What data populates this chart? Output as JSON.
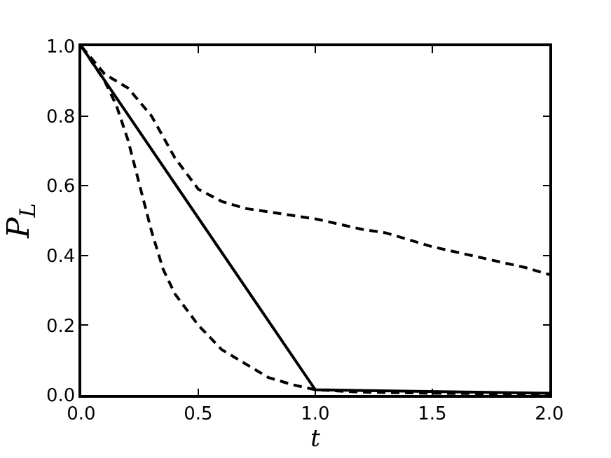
{
  "chart_data": {
    "type": "line",
    "xlabel": "t",
    "ylabel": "P$_{L}$",
    "xlim": [
      0.0,
      2.0
    ],
    "ylim": [
      0.0,
      1.0
    ],
    "xticks": [
      {
        "value": 0,
        "label": "0.0"
      },
      {
        "value": 0.5,
        "label": "0.5"
      },
      {
        "value": 1,
        "label": "1.0"
      },
      {
        "value": 1.5,
        "label": "1.5"
      },
      {
        "value": 2,
        "label": "2.0"
      }
    ],
    "yticks": [
      {
        "value": 0,
        "label": "0.0"
      },
      {
        "value": 0.2,
        "label": "0.2"
      },
      {
        "value": 0.4,
        "label": "0.4"
      },
      {
        "value": 0.6,
        "label": "0.6"
      },
      {
        "value": 0.8,
        "label": "0.8"
      },
      {
        "value": 1,
        "label": "1.0"
      }
    ],
    "marker": "none",
    "series": [
      {
        "color": "#000000",
        "line_style": "solid",
        "x": [
          0,
          1.0,
          2.0
        ],
        "values": [
          1.0,
          0.015,
          0.005
        ]
      },
      {
        "color": "#000000",
        "line_style": "dashed",
        "x": [
          0,
          0.1,
          0.2,
          0.3,
          0.4,
          0.5,
          0.6,
          0.7,
          0.8,
          0.9,
          1.0,
          1.1,
          1.2,
          1.3,
          1.4,
          1.5,
          1.6,
          1.7,
          1.8,
          1.9,
          2.0
        ],
        "values": [
          1.0,
          0.92,
          0.88,
          0.8,
          0.68,
          0.59,
          0.555,
          0.535,
          0.525,
          0.515,
          0.505,
          0.49,
          0.475,
          0.465,
          0.445,
          0.425,
          0.41,
          0.395,
          0.38,
          0.365,
          0.345
        ]
      },
      {
        "color": "#000000",
        "line_style": "dashed",
        "x": [
          0,
          0.05,
          0.1,
          0.15,
          0.2,
          0.25,
          0.3,
          0.35,
          0.4,
          0.5,
          0.6,
          0.7,
          0.8,
          0.9,
          1.0,
          1.2,
          1.5,
          2.0
        ],
        "values": [
          1.0,
          0.95,
          0.9,
          0.83,
          0.73,
          0.6,
          0.47,
          0.36,
          0.29,
          0.2,
          0.13,
          0.09,
          0.05,
          0.03,
          0.015,
          0.008,
          0.005,
          0.003
        ]
      }
    ]
  }
}
